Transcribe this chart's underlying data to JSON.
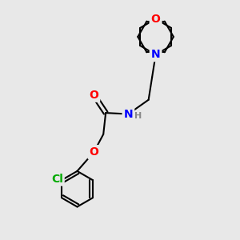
{
  "bg_color": "#e8e8e8",
  "bond_color": "#000000",
  "bond_width": 1.5,
  "atom_colors": {
    "O": "#ff0000",
    "N": "#0000ff",
    "Cl": "#00aa00",
    "C": "#000000",
    "H": "#888888"
  },
  "font_size_atom": 10,
  "font_size_H": 8,
  "figsize": [
    3.0,
    3.0
  ],
  "dpi": 100,
  "xlim": [
    0,
    10
  ],
  "ylim": [
    0,
    10
  ]
}
